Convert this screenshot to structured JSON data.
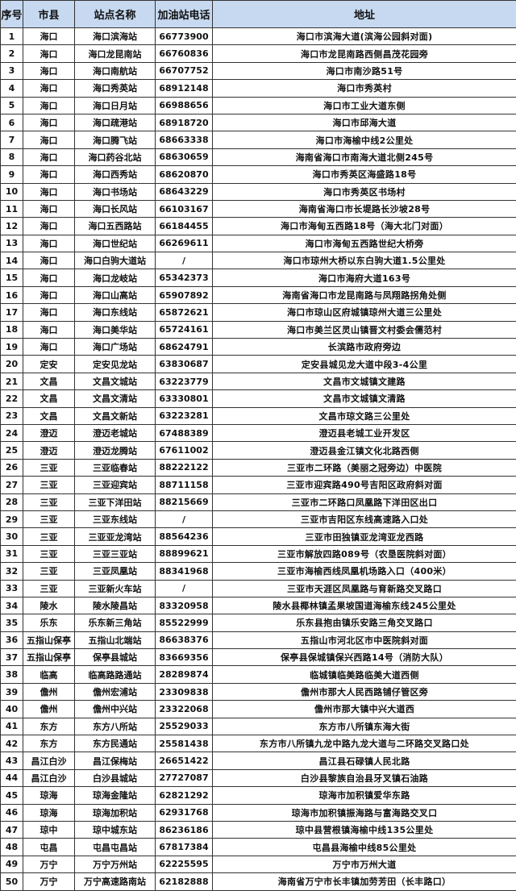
{
  "headers": [
    "序号",
    "市县",
    "站点名称",
    "加油站电话",
    "地址"
  ],
  "rows": [
    [
      "1",
      "海口",
      "海口滨海站",
      "66773900",
      "海口市滨海大道(滨海公园斜对面)"
    ],
    [
      "2",
      "海口",
      "海口龙昆南站",
      "66760836",
      "海口市龙昆南路西侧昌茂花园旁"
    ],
    [
      "3",
      "海口",
      "海口南航站",
      "66707752",
      "海口市南沙路51号"
    ],
    [
      "4",
      "海口",
      "海口秀英站",
      "68912148",
      "海口市秀英村"
    ],
    [
      "5",
      "海口",
      "海口日月站",
      "66988656",
      "海口市工业大道东侧"
    ],
    [
      "6",
      "海口",
      "海口疏港站",
      "68918720",
      "海口市邱海大道"
    ],
    [
      "7",
      "海口",
      "海口腾飞站",
      "68663338",
      "海口市海榆中线2公里处"
    ],
    [
      "8",
      "海口",
      "海口药谷北站",
      "68630659",
      "海南省海口市南海大道北侧245号"
    ],
    [
      "9",
      "海口",
      "海口西秀站",
      "68620870",
      "海口市秀英区海盛路18号"
    ],
    [
      "10",
      "海口",
      "海口书场站",
      "68643229",
      "海口市秀英区书场村"
    ],
    [
      "11",
      "海口",
      "海口长风站",
      "66103167",
      "海南省海口市长堤路长沙坡28号"
    ],
    [
      "12",
      "海口",
      "海口五西路站",
      "66184455",
      "海口市海甸五西路18号（海大北门对面）"
    ],
    [
      "13",
      "海口",
      "海口世纪站",
      "66269611",
      "海口市海甸五西路世纪大桥旁"
    ],
    [
      "14",
      "海口",
      "海口白驹大道站",
      "/",
      "海口市琼州大桥以东白驹大道1.5公里处"
    ],
    [
      "15",
      "海口",
      "海口龙岐站",
      "65342373",
      "海口市海府大道163号"
    ],
    [
      "16",
      "海口",
      "海口山高站",
      "65907892",
      "海南省海口市龙昆南路与凤翔路拐角处侧"
    ],
    [
      "17",
      "海口",
      "海口东线站",
      "65872621",
      "海口市琼山区府城镇琼州大道三公里处"
    ],
    [
      "18",
      "海口",
      "海口美华站",
      "65724161",
      "海口市美兰区灵山镇晋文村委会儒范村"
    ],
    [
      "19",
      "海口",
      "海口广场站",
      "68624791",
      "长滨路市政府旁边"
    ],
    [
      "20",
      "定安",
      "定安见龙站",
      "63830687",
      "定安县城见龙大道中段3-4公里"
    ],
    [
      "21",
      "文昌",
      "文昌文城站",
      "63223779",
      "文昌市文城镇文建路"
    ],
    [
      "22",
      "文昌",
      "文昌文清站",
      "63330801",
      "文昌市文城镇文清路"
    ],
    [
      "23",
      "文昌",
      "文昌文新站",
      "63223281",
      "文昌市琼文路三公里处"
    ],
    [
      "24",
      "澄迈",
      "澄迈老城站",
      "67488389",
      "澄迈县老城工业开发区"
    ],
    [
      "25",
      "澄迈",
      "澄迈龙腾站",
      "67611002",
      "澄迈县金江镇文化北路西侧"
    ],
    [
      "26",
      "三亚",
      "三亚临春站",
      "88222122",
      "三亚市二环路（美丽之冠旁边）中医院"
    ],
    [
      "27",
      "三亚",
      "三亚迎宾站",
      "88711158",
      "三亚市迎宾路490号吉阳区政府斜对面"
    ],
    [
      "28",
      "三亚",
      "三亚下洋田站",
      "88215669",
      "三亚市二环路口凤凰路下洋田区出口"
    ],
    [
      "29",
      "三亚",
      "三亚东线站",
      "/",
      "三亚市吉阳区东线高速路入口处"
    ],
    [
      "30",
      "三亚",
      "三亚亚龙湾站",
      "88564236",
      "三亚市田独镇亚龙湾亚龙西路"
    ],
    [
      "31",
      "三亚",
      "三亚三亚站",
      "88899621",
      "三亚市解放四路089号（农垦医院斜对面）"
    ],
    [
      "32",
      "三亚",
      "三亚凤凰站",
      "88341968",
      "三亚市海榆西线凤凰机场路入口（400米）"
    ],
    [
      "33",
      "三亚",
      "三亚新火车站",
      "/",
      "三亚市天涯区凤凰路与育新路交叉路口"
    ],
    [
      "34",
      "陵水",
      "陵水陵昌站",
      "83320958",
      "陵水县椰林镇孟果坡国道海榆东线245公里处"
    ],
    [
      "35",
      "乐东",
      "乐东新三角站",
      "85522999",
      "乐东县抱由镇乐安路三角交叉路口"
    ],
    [
      "36",
      "五指山保亭",
      "五指山北端站",
      "86638376",
      "五指山市河北区市中医院斜对面"
    ],
    [
      "37",
      "五指山保亭",
      "保亭县城站",
      "83669356",
      "保亭县保城镇保兴西路14号（消防大队）"
    ],
    [
      "38",
      "临高",
      "临高路路通站",
      "28289874",
      "临城镇临美路临美大道西侧"
    ],
    [
      "39",
      "儋州",
      "儋州宏浦站",
      "23309838",
      "儋州市那大人民西路铺仔管区旁"
    ],
    [
      "40",
      "儋州",
      "儋州中兴站",
      "23322068",
      "儋州市那大镇中兴大道西"
    ],
    [
      "41",
      "东方",
      "东方八所站",
      "25529033",
      "东方市八所镇东海大街"
    ],
    [
      "42",
      "东方",
      "东方民通站",
      "25581438",
      "东方市八所镇九龙中路九龙大道与二环路交叉路口处"
    ],
    [
      "43",
      "昌江白沙",
      "昌江保梅站",
      "26651422",
      "昌江县石碌镇人民北路"
    ],
    [
      "44",
      "昌江白沙",
      "白沙县城站",
      "27727087",
      "白沙县黎族自治县牙叉镇石油路"
    ],
    [
      "45",
      "琼海",
      "琼海金隆站",
      "62821292",
      "琼海市加积镇爱华东路"
    ],
    [
      "46",
      "琼海",
      "琼海加积站",
      "62931768",
      "琼海市加积镇振海路与富海路交叉口"
    ],
    [
      "47",
      "琼中",
      "琼中城东站",
      "86236186",
      "琼中县营根镇海榆中线135公里处"
    ],
    [
      "48",
      "屯昌",
      "屯昌屯昌站",
      "67817384",
      "屯昌县海榆中线85公里处"
    ],
    [
      "49",
      "万宁",
      "万宁万州站",
      "62225595",
      "万宁市万州大道"
    ],
    [
      "50",
      "万宁",
      "万宁高速路南站",
      "62182888",
      "海南省万宁市长丰镇加劳芳田（长丰路口）"
    ]
  ]
}
